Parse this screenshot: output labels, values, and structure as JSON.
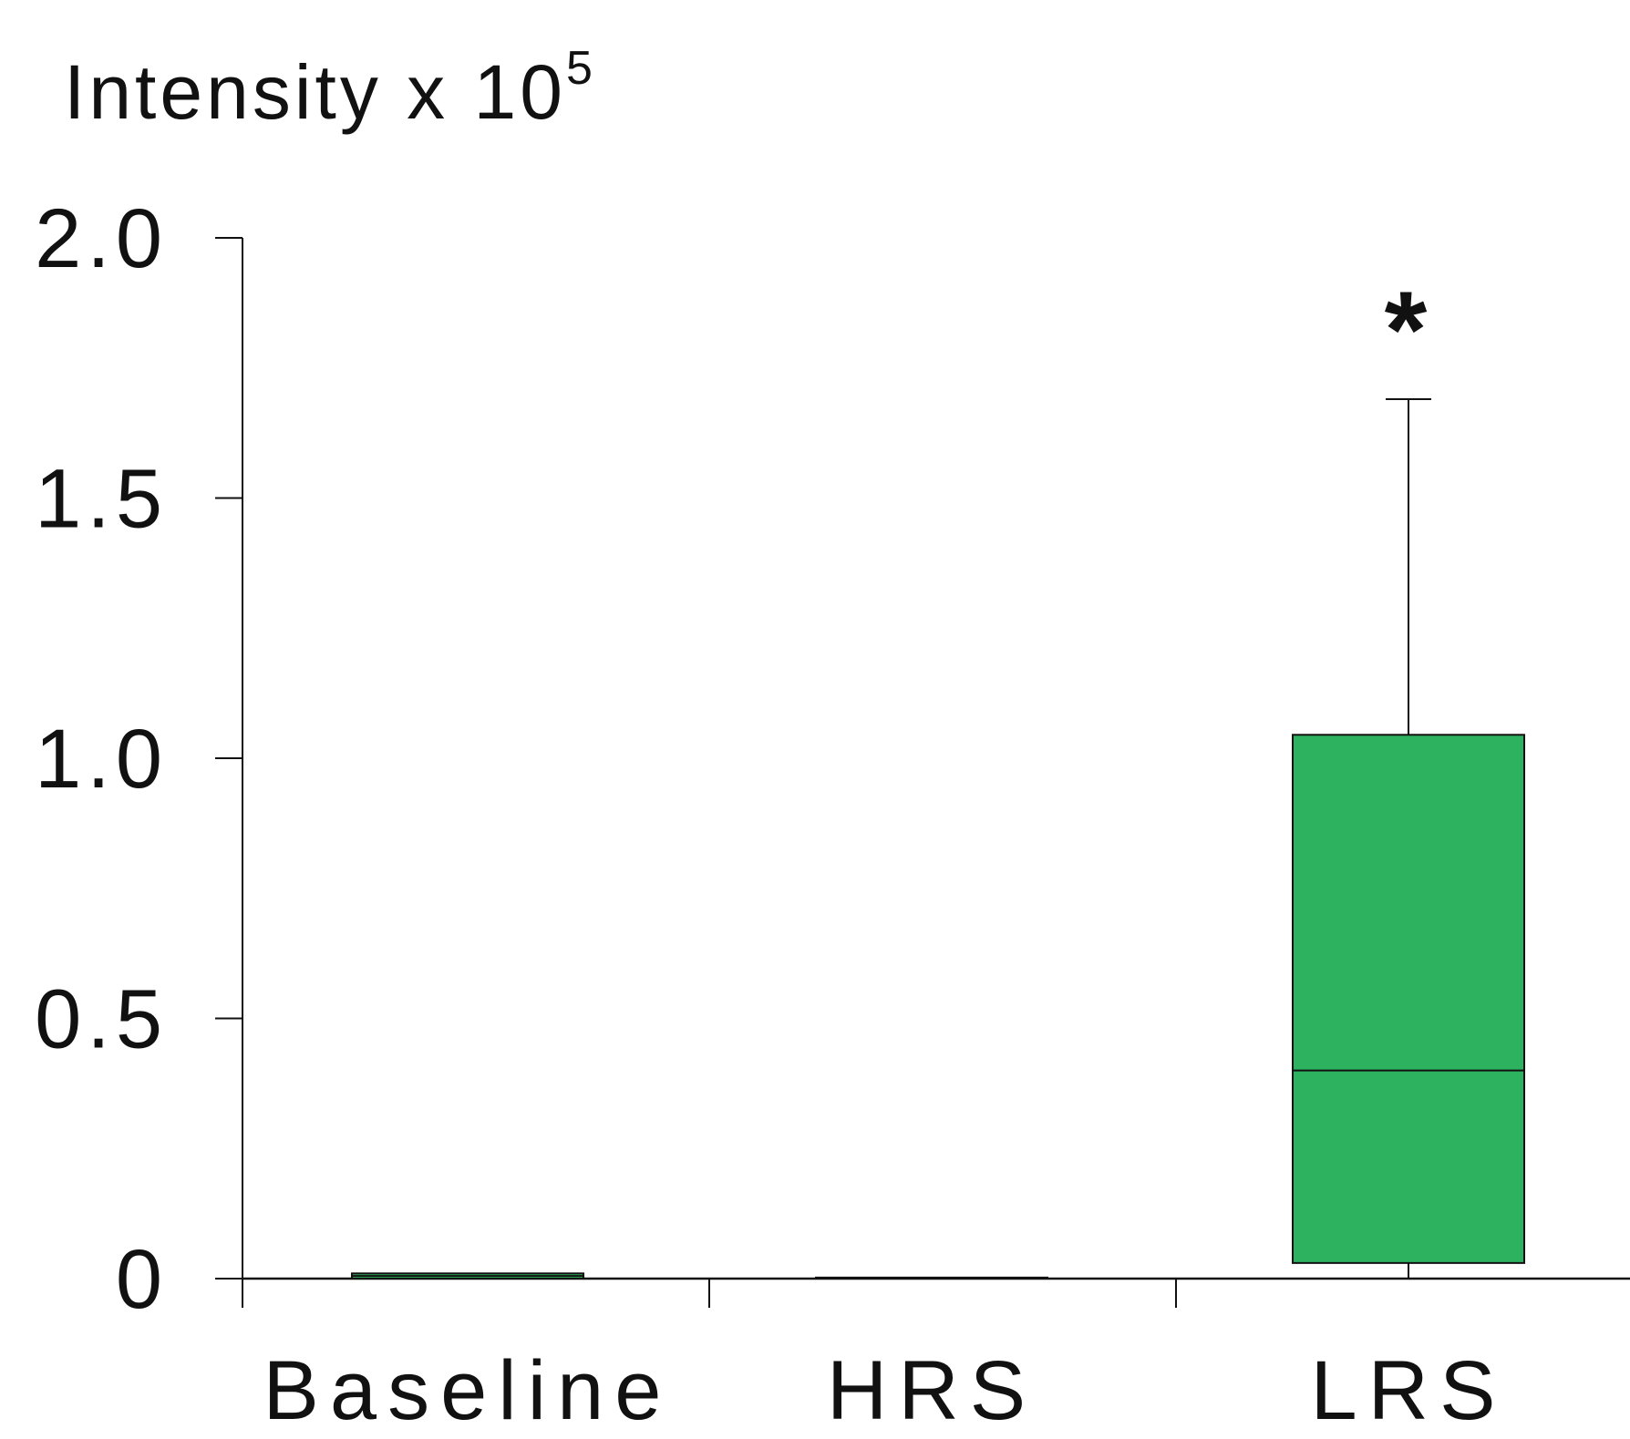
{
  "chart_data": {
    "type": "box",
    "ylabel": "Intensity x 10",
    "ylabel_superscript": "5",
    "categories": [
      "Baseline",
      "HRS",
      "LRS"
    ],
    "yticks": [
      "0",
      "0.5",
      "1.0",
      "1.5",
      "2.0"
    ],
    "ylim": [
      0,
      2.0
    ],
    "grid": false,
    "boxes": [
      {
        "category": "Baseline",
        "min": 0,
        "q1": 0,
        "median": 0.005,
        "q3": 0.01,
        "max": 0.01,
        "annotation": ""
      },
      {
        "category": "HRS",
        "min": 0,
        "q1": 0,
        "median": 0,
        "q3": 0.002,
        "max": 0.002,
        "annotation": ""
      },
      {
        "category": "LRS",
        "min": 0,
        "q1": 0.03,
        "median": 0.4,
        "q3": 1.045,
        "max": 1.69,
        "annotation": "*"
      }
    ],
    "box_color": "#2db360"
  }
}
